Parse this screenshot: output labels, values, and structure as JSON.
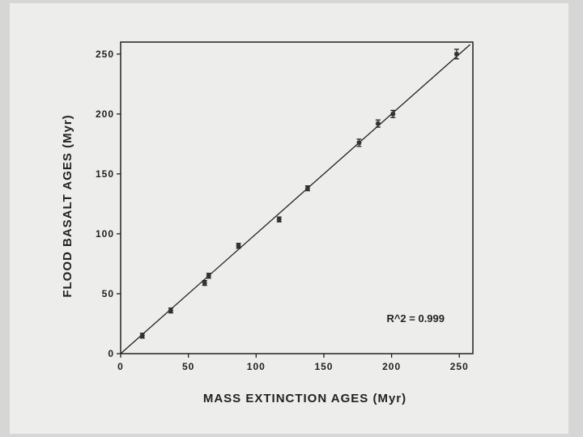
{
  "chart_data": {
    "type": "scatter",
    "xlabel": "MASS EXTINCTION AGES (Myr)",
    "ylabel": "FLOOD BASALT AGES (Myr)",
    "xlim": [
      0,
      260
    ],
    "ylim": [
      0,
      260
    ],
    "x_ticks": [
      0,
      50,
      100,
      150,
      200,
      250
    ],
    "y_ticks": [
      0,
      50,
      100,
      150,
      200,
      250
    ],
    "grid": false,
    "annotation": "R^2 = 0.999",
    "points": [
      {
        "x": 16,
        "y": 15,
        "xerr": 1,
        "yerr": 1
      },
      {
        "x": 37,
        "y": 36,
        "xerr": 1,
        "yerr": 1
      },
      {
        "x": 62,
        "y": 59,
        "xerr": 1,
        "yerr": 1
      },
      {
        "x": 65,
        "y": 65,
        "xerr": 1,
        "yerr": 1
      },
      {
        "x": 87,
        "y": 90,
        "xerr": 1,
        "yerr": 1
      },
      {
        "x": 117,
        "y": 112,
        "xerr": 1,
        "yerr": 1
      },
      {
        "x": 138,
        "y": 138,
        "xerr": 1,
        "yerr": 1
      },
      {
        "x": 176,
        "y": 176,
        "xerr": 1,
        "yerr": 3
      },
      {
        "x": 190,
        "y": 192,
        "xerr": 1,
        "yerr": 3
      },
      {
        "x": 201,
        "y": 200,
        "xerr": 1,
        "yerr": 3
      },
      {
        "x": 248,
        "y": 250,
        "xerr": 1,
        "yerr": 4
      }
    ],
    "fit_line": {
      "x": [
        0,
        258
      ],
      "y": [
        0,
        258
      ]
    }
  }
}
